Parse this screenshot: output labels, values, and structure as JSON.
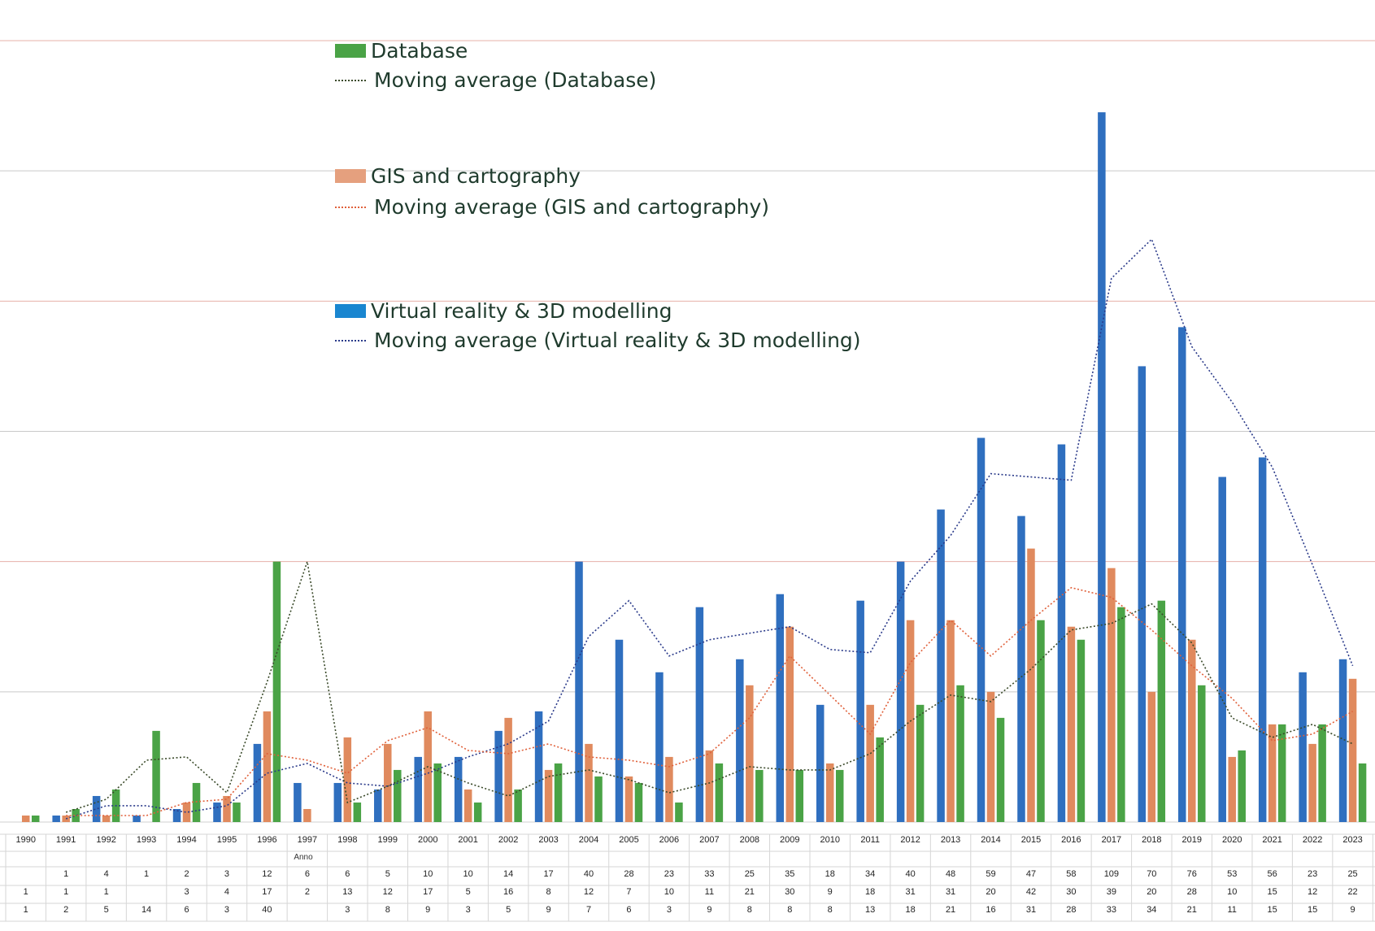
{
  "chart_data": {
    "type": "bar",
    "xlabel": "Anno",
    "categories": [
      "1990",
      "1991",
      "1992",
      "1993",
      "1994",
      "1995",
      "1996",
      "1997",
      "1998",
      "1999",
      "2000",
      "2001",
      "2002",
      "2003",
      "2004",
      "2005",
      "2006",
      "2007",
      "2008",
      "2009",
      "2010",
      "2011",
      "2012",
      "2013",
      "2014",
      "2015",
      "2016",
      "2017",
      "2018",
      "2019",
      "2020",
      "2021",
      "2022",
      "2023"
    ],
    "ylim": [
      0,
      120
    ],
    "grid": true,
    "legend": "top-left",
    "series": [
      {
        "name": "Virtual reality & 3D modelling",
        "color": "#2f6fbf",
        "values": [
          null,
          1,
          4,
          1,
          2,
          3,
          12,
          6,
          6,
          5,
          10,
          10,
          14,
          17,
          40,
          28,
          23,
          33,
          25,
          35,
          18,
          34,
          40,
          48,
          59,
          47,
          58,
          109,
          70,
          76,
          53,
          56,
          23,
          25
        ]
      },
      {
        "name": "GIS and cartography",
        "color": "#e08a5e",
        "values": [
          1,
          1,
          1,
          null,
          3,
          4,
          17,
          2,
          13,
          12,
          17,
          5,
          16,
          8,
          12,
          7,
          10,
          11,
          21,
          30,
          9,
          18,
          31,
          31,
          20,
          42,
          30,
          39,
          20,
          28,
          10,
          15,
          12,
          22
        ]
      },
      {
        "name": "Database",
        "color": "#4aa346",
        "values": [
          1,
          2,
          5,
          14,
          6,
          3,
          40,
          null,
          3,
          8,
          9,
          3,
          5,
          9,
          7,
          6,
          3,
          9,
          8,
          8,
          8,
          13,
          18,
          21,
          16,
          31,
          28,
          33,
          34,
          21,
          11,
          15,
          15,
          9
        ]
      }
    ],
    "moving_average": {
      "Virtual reality & 3D modelling": [
        null,
        0.5,
        2.5,
        2.5,
        1.5,
        2.5,
        7.5,
        9,
        6,
        5.5,
        7.5,
        10,
        12,
        15.5,
        28.5,
        34,
        25.5,
        28,
        29,
        30,
        26.5,
        26,
        37,
        44,
        53.5,
        53,
        52.5,
        83.5,
        89.5,
        73,
        64.5,
        54.5,
        39.5,
        24
      ],
      "GIS and cartography": [
        null,
        1,
        1,
        1,
        3,
        3.5,
        10.5,
        9.5,
        7.5,
        12.5,
        14.5,
        11,
        10.5,
        12,
        10,
        9.5,
        8.5,
        10.5,
        16,
        25.5,
        19.5,
        13.5,
        24.5,
        31,
        25.5,
        31,
        36,
        34.5,
        29.5,
        24,
        19,
        12.5,
        13.5,
        17
      ],
      "Database": [
        null,
        1.5,
        3.5,
        9.5,
        10,
        4.5,
        21.5,
        40,
        3,
        5.5,
        8.5,
        6,
        4,
        7,
        8,
        6.5,
        4.5,
        6,
        8.5,
        8,
        8,
        10.5,
        15.5,
        19.5,
        18.5,
        23.5,
        29.5,
        30.5,
        33.5,
        27.5,
        16,
        13,
        15,
        12
      ]
    },
    "legend_entries": {
      "db_title": "Database",
      "db_ma": "Moving average (Database)",
      "gis_title": "GIS and cartography",
      "gis_ma": "Moving average (GIS and cartography)",
      "vr_title": "Virtual reality & 3D modelling",
      "vr_ma": "Moving average (Virtual reality & 3D modelling)"
    },
    "table_rows": [
      [
        "",
        "1",
        "4",
        "1",
        "2",
        "3",
        "12",
        "6",
        "6",
        "5",
        "10",
        "10",
        "14",
        "17",
        "40",
        "28",
        "23",
        "33",
        "25",
        "35",
        "18",
        "34",
        "40",
        "48",
        "59",
        "47",
        "58",
        "109",
        "70",
        "76",
        "53",
        "56",
        "23",
        "25"
      ],
      [
        "1",
        "1",
        "1",
        "",
        "3",
        "4",
        "17",
        "2",
        "13",
        "12",
        "17",
        "5",
        "16",
        "8",
        "12",
        "7",
        "10",
        "11",
        "21",
        "30",
        "9",
        "18",
        "31",
        "31",
        "20",
        "42",
        "30",
        "39",
        "20",
        "28",
        "10",
        "15",
        "12",
        "22"
      ],
      [
        "1",
        "2",
        "5",
        "14",
        "6",
        "3",
        "40",
        "",
        "3",
        "8",
        "9",
        "3",
        "5",
        "9",
        "7",
        "6",
        "3",
        "9",
        "8",
        "8",
        "8",
        "13",
        "18",
        "21",
        "16",
        "31",
        "28",
        "33",
        "34",
        "21",
        "11",
        "15",
        "15",
        "9"
      ]
    ],
    "grid_colors": [
      "#c9c9c9",
      "#e7b1a9"
    ]
  }
}
